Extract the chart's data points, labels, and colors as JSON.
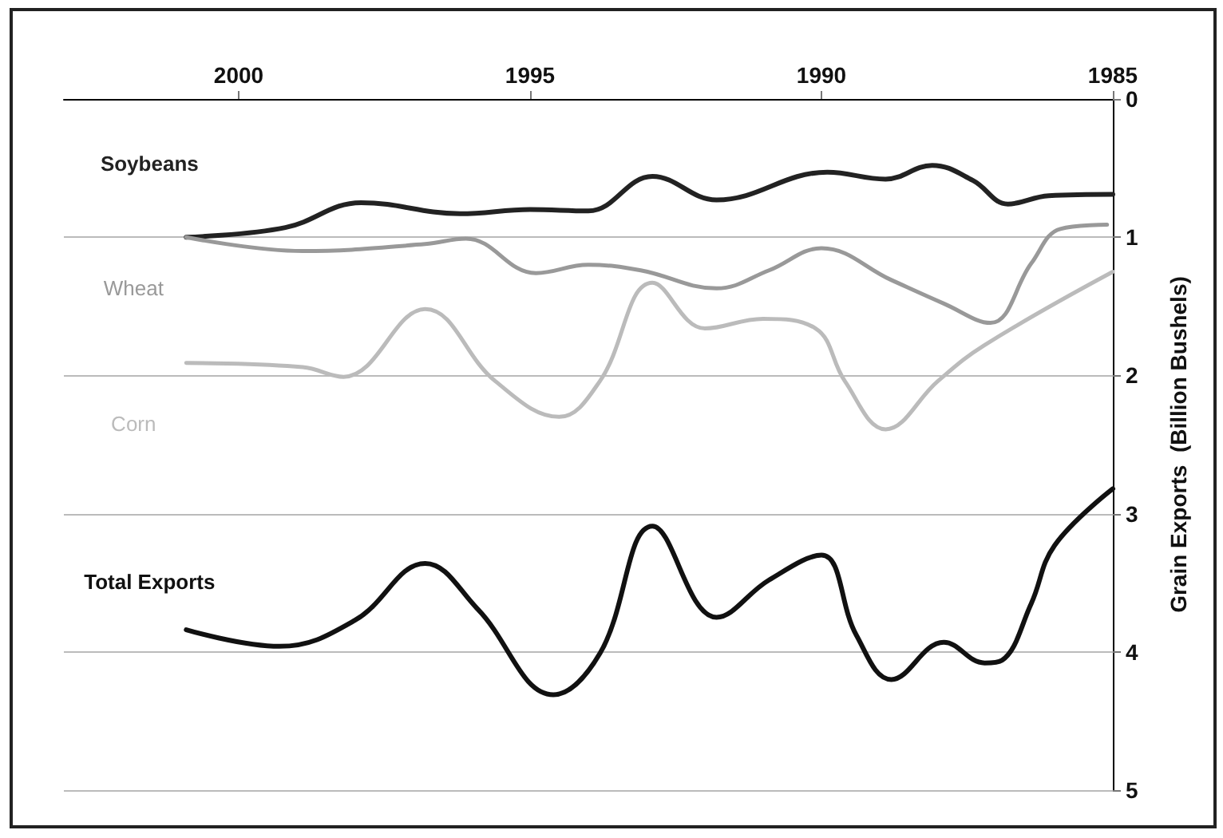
{
  "chart_data": {
    "type": "line",
    "ylabel": "Grain Exports  (Billion Bushels)",
    "xlim": [
      2003,
      1985
    ],
    "xticks": [
      1985,
      1990,
      1995,
      2000
    ],
    "ylim": [
      5,
      0
    ],
    "yticks": [
      0,
      1,
      2,
      3,
      4,
      5
    ],
    "grid": "y",
    "legend": false,
    "marker": "none",
    "line_style": "solid",
    "series": [
      {
        "name": "Total Exports",
        "color": "#111111",
        "x": [
          1985,
          1986,
          1986.4,
          1986.9,
          1987.2,
          1987.9,
          1988.8,
          1989.4,
          1990,
          1990.9,
          1991.8,
          1992.9,
          1993.8,
          1994.6,
          1995.9,
          1996.8,
          1998,
          1999.3,
          2000.9
        ],
        "values": [
          2.82,
          3.23,
          3.65,
          4.06,
          4.08,
          3.93,
          4.2,
          3.88,
          3.3,
          3.48,
          3.75,
          3.09,
          4.01,
          4.31,
          3.69,
          3.36,
          3.77,
          3.96,
          3.84
        ]
      },
      {
        "name": "Soybeans",
        "color": "#222222",
        "x": [
          1985,
          1986.1,
          1986.8,
          1987.4,
          1988.1,
          1988.9,
          1989.9,
          1991.8,
          1992.9,
          1994,
          1995,
          1996.2,
          1997.9,
          1999.2,
          2000.9
        ],
        "values": [
          0.69,
          0.7,
          0.76,
          0.59,
          0.48,
          0.58,
          0.53,
          0.73,
          0.56,
          0.81,
          0.8,
          0.83,
          0.75,
          0.93,
          1.0
        ]
      },
      {
        "name": "Wheat",
        "color": "#999999",
        "x": [
          1985.1,
          1985.9,
          1986.4,
          1987.1,
          1987.9,
          1988.8,
          1990,
          1990.9,
          1991.8,
          1993.1,
          1994,
          1994.9,
          1996.1,
          1996.8,
          1998.9,
          2000.9
        ],
        "values": [
          0.91,
          0.94,
          1.19,
          1.62,
          1.48,
          1.31,
          1.08,
          1.24,
          1.37,
          1.24,
          1.2,
          1.26,
          1.01,
          1.05,
          1.1,
          1.0
        ]
      },
      {
        "name": "Corn",
        "color": "#bbbbbb",
        "x": [
          1985,
          1987.2,
          1988,
          1988.9,
          1989.6,
          1990.1,
          1991,
          1992,
          1992.9,
          1993.8,
          1994.5,
          1995.6,
          1996.8,
          1998.2,
          1998.9,
          2000.9
        ],
        "values": [
          1.25,
          1.78,
          2.04,
          2.39,
          2.04,
          1.66,
          1.59,
          1.66,
          1.33,
          2.04,
          2.3,
          2.04,
          1.52,
          2.01,
          1.94,
          1.91
        ]
      }
    ]
  }
}
